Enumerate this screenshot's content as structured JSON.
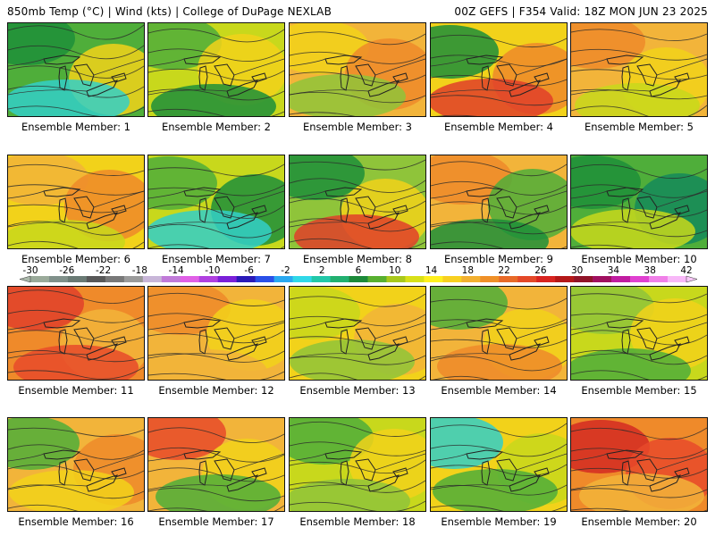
{
  "header": {
    "left": "850mb Temp (°C) | Wind (kts) | College of DuPage NEXLAB",
    "right": "00Z GEFS | F354 Valid: 18Z MON JUN 23 2025"
  },
  "members": [
    {
      "label": "Ensemble Member: 1",
      "base": "#4fae3a",
      "blobs": [
        {
          "c": "#1d8f3a"
        },
        {
          "c": "#f2d21a"
        },
        {
          "c": "#33cfc8"
        }
      ]
    },
    {
      "label": "Ensemble Member: 2",
      "base": "#c8d81c",
      "blobs": [
        {
          "c": "#4fae3a"
        },
        {
          "c": "#f2d21a"
        },
        {
          "c": "#1d8f3a"
        }
      ]
    },
    {
      "label": "Ensemble Member: 3",
      "base": "#f2b43a",
      "blobs": [
        {
          "c": "#f2d21a"
        },
        {
          "c": "#ef8a2a"
        },
        {
          "c": "#8fc43a"
        }
      ]
    },
    {
      "label": "Ensemble Member: 4",
      "base": "#f2d21a",
      "blobs": [
        {
          "c": "#1d8f3a"
        },
        {
          "c": "#ef8a2a"
        },
        {
          "c": "#e0402a"
        }
      ]
    },
    {
      "label": "Ensemble Member: 5",
      "base": "#f2b43a",
      "blobs": [
        {
          "c": "#ef8a2a"
        },
        {
          "c": "#f2d21a"
        },
        {
          "c": "#c8d81c"
        }
      ]
    },
    {
      "label": "Ensemble Member: 6",
      "base": "#f2d21a",
      "blobs": [
        {
          "c": "#f2b43a"
        },
        {
          "c": "#ef8a2a"
        },
        {
          "c": "#c8d81c"
        }
      ]
    },
    {
      "label": "Ensemble Member: 7",
      "base": "#c8d81c",
      "blobs": [
        {
          "c": "#4fae3a"
        },
        {
          "c": "#1d8f3a"
        },
        {
          "c": "#33cfc8"
        }
      ]
    },
    {
      "label": "Ensemble Member: 8",
      "base": "#8fc43a",
      "blobs": [
        {
          "c": "#1d8f3a"
        },
        {
          "c": "#f2d21a"
        },
        {
          "c": "#e0402a"
        }
      ]
    },
    {
      "label": "Ensemble Member: 9",
      "base": "#f2b43a",
      "blobs": [
        {
          "c": "#ef8a2a"
        },
        {
          "c": "#4fae3a"
        },
        {
          "c": "#1d8f3a"
        }
      ]
    },
    {
      "label": "Ensemble Member: 10",
      "base": "#4fae3a",
      "blobs": [
        {
          "c": "#1d8f3a"
        },
        {
          "c": "#148a5a"
        },
        {
          "c": "#c8d81c"
        }
      ]
    },
    {
      "label": "Ensemble Member: 11",
      "base": "#ef8a2a",
      "blobs": [
        {
          "c": "#e0402a"
        },
        {
          "c": "#f2b43a"
        },
        {
          "c": "#e84a2a"
        }
      ]
    },
    {
      "label": "Ensemble Member: 12",
      "base": "#f2b43a",
      "blobs": [
        {
          "c": "#ef8a2a"
        },
        {
          "c": "#f2d21a"
        },
        {
          "c": "#f2b43a"
        }
      ]
    },
    {
      "label": "Ensemble Member: 13",
      "base": "#f2d21a",
      "blobs": [
        {
          "c": "#c8d81c"
        },
        {
          "c": "#f2b43a"
        },
        {
          "c": "#8fc43a"
        }
      ]
    },
    {
      "label": "Ensemble Member: 14",
      "base": "#f2b43a",
      "blobs": [
        {
          "c": "#4fae3a"
        },
        {
          "c": "#f2d21a"
        },
        {
          "c": "#ef8a2a"
        }
      ]
    },
    {
      "label": "Ensemble Member: 15",
      "base": "#c8d81c",
      "blobs": [
        {
          "c": "#8fc43a"
        },
        {
          "c": "#f2d21a"
        },
        {
          "c": "#4fae3a"
        }
      ]
    },
    {
      "label": "Ensemble Member: 16",
      "base": "#f2b43a",
      "blobs": [
        {
          "c": "#4fae3a"
        },
        {
          "c": "#ef8a2a"
        },
        {
          "c": "#f2d21a"
        }
      ]
    },
    {
      "label": "Ensemble Member: 17",
      "base": "#f2b43a",
      "blobs": [
        {
          "c": "#e84a2a"
        },
        {
          "c": "#f2d21a"
        },
        {
          "c": "#4fae3a"
        }
      ]
    },
    {
      "label": "Ensemble Member: 18",
      "base": "#c8d81c",
      "blobs": [
        {
          "c": "#4fae3a"
        },
        {
          "c": "#f2d21a"
        },
        {
          "c": "#8fc43a"
        }
      ]
    },
    {
      "label": "Ensemble Member: 19",
      "base": "#f2d21a",
      "blobs": [
        {
          "c": "#33cfc8"
        },
        {
          "c": "#c8d81c"
        },
        {
          "c": "#4fae3a"
        }
      ]
    },
    {
      "label": "Ensemble Member: 20",
      "base": "#ef8a2a",
      "blobs": [
        {
          "c": "#d42a22"
        },
        {
          "c": "#e84a2a"
        },
        {
          "c": "#f2b43a"
        }
      ]
    }
  ],
  "colorbar": {
    "labels": [
      "-30",
      "-26",
      "-22",
      "-18",
      "-14",
      "-10",
      "-6",
      "-2",
      "2",
      "6",
      "10",
      "14",
      "18",
      "22",
      "26",
      "30",
      "34",
      "38",
      "42"
    ],
    "colors": [
      "#9aaa9a",
      "#80908a",
      "#6a7a74",
      "#585858",
      "#787878",
      "#9a9a9a",
      "#c8b6d8",
      "#c07ad8",
      "#e060e6",
      "#b040e0",
      "#7a20d8",
      "#2a1ab8",
      "#2a50e8",
      "#2aa8f0",
      "#30d8e8",
      "#22c8a8",
      "#22b070",
      "#1c8a3a",
      "#58b030",
      "#a8c81c",
      "#d8e018",
      "#fff01e",
      "#f8d020",
      "#f2b030",
      "#ef9028",
      "#e86a28",
      "#e44828",
      "#d82420",
      "#b41818",
      "#901428",
      "#a01060",
      "#c01ca0",
      "#e040d0",
      "#f080e8",
      "#f8b8f8"
    ]
  }
}
